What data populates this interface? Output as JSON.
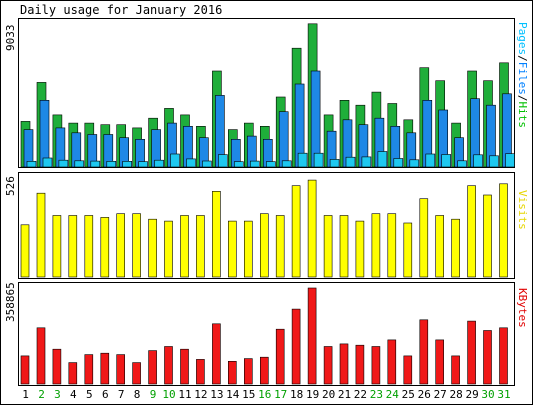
{
  "chart_data": [
    {
      "type": "bar",
      "title": "Daily usage for January 2016",
      "max_label": "9033",
      "legend": [
        {
          "text": "Pages",
          "color": "#00ffff"
        },
        {
          "text": "Files",
          "color": "#0080ff"
        },
        {
          "text": "Hits",
          "color": "#00c000"
        }
      ],
      "separator": "/",
      "categories": [
        "1",
        "2",
        "3",
        "4",
        "5",
        "6",
        "7",
        "8",
        "9",
        "10",
        "11",
        "12",
        "13",
        "14",
        "15",
        "16",
        "17",
        "18",
        "19",
        "20",
        "21",
        "22",
        "23",
        "24",
        "25",
        "26",
        "27",
        "28",
        "29",
        "30",
        "31"
      ],
      "weekend_days": [
        "2",
        "3",
        "9",
        "10",
        "16",
        "17",
        "23",
        "24",
        "30",
        "31"
      ],
      "ylim": [
        0,
        9033
      ],
      "series": [
        {
          "name": "Hits",
          "color": "#1fae3a",
          "values": [
            2800,
            5200,
            3200,
            2700,
            2700,
            2600,
            2600,
            2400,
            3000,
            3600,
            3200,
            2500,
            5900,
            2300,
            2700,
            2500,
            4300,
            7300,
            8800,
            3200,
            4100,
            3800,
            4600,
            3900,
            2900,
            6100,
            5300,
            2700,
            5900,
            5300,
            6400
          ]
        },
        {
          "name": "Files",
          "color": "#1e88e6",
          "values": [
            2300,
            4100,
            2400,
            2100,
            2000,
            2000,
            1800,
            1700,
            2300,
            2700,
            2500,
            1800,
            4400,
            1700,
            1900,
            1700,
            3400,
            5100,
            5900,
            2200,
            2900,
            2600,
            3000,
            2500,
            2100,
            4100,
            3500,
            1800,
            4200,
            3800,
            4500
          ]
        },
        {
          "name": "Pages",
          "color": "#1ec8f0",
          "values": [
            350,
            550,
            420,
            380,
            360,
            350,
            350,
            330,
            420,
            800,
            500,
            370,
            760,
            330,
            360,
            330,
            380,
            850,
            850,
            470,
            600,
            620,
            950,
            520,
            440,
            800,
            770,
            380,
            750,
            690,
            820
          ]
        }
      ]
    },
    {
      "type": "bar",
      "max_label": "526",
      "legend": [
        {
          "text": "Visits",
          "color": "#ffff00"
        }
      ],
      "ylim": [
        0,
        526
      ],
      "series": [
        {
          "name": "Visits",
          "color": "#ffff00",
          "values": [
            280,
            450,
            330,
            330,
            330,
            320,
            340,
            340,
            310,
            300,
            330,
            330,
            460,
            300,
            300,
            340,
            330,
            490,
            520,
            330,
            330,
            300,
            340,
            340,
            290,
            420,
            330,
            310,
            490,
            440,
            500
          ]
        }
      ]
    },
    {
      "type": "bar",
      "max_label": "358865",
      "legend": [
        {
          "text": "KBytes",
          "color": "#ff0000"
        }
      ],
      "ylim": [
        0,
        358865
      ],
      "series": [
        {
          "name": "KBytes",
          "color": "#f01818",
          "values": [
            105000,
            210000,
            130000,
            80000,
            110000,
            115000,
            110000,
            80000,
            125000,
            140000,
            130000,
            92000,
            225000,
            85000,
            95000,
            100000,
            205000,
            280000,
            358865,
            140000,
            150000,
            145000,
            140000,
            165000,
            105000,
            240000,
            165000,
            105000,
            235000,
            200000,
            210000
          ]
        }
      ]
    }
  ]
}
